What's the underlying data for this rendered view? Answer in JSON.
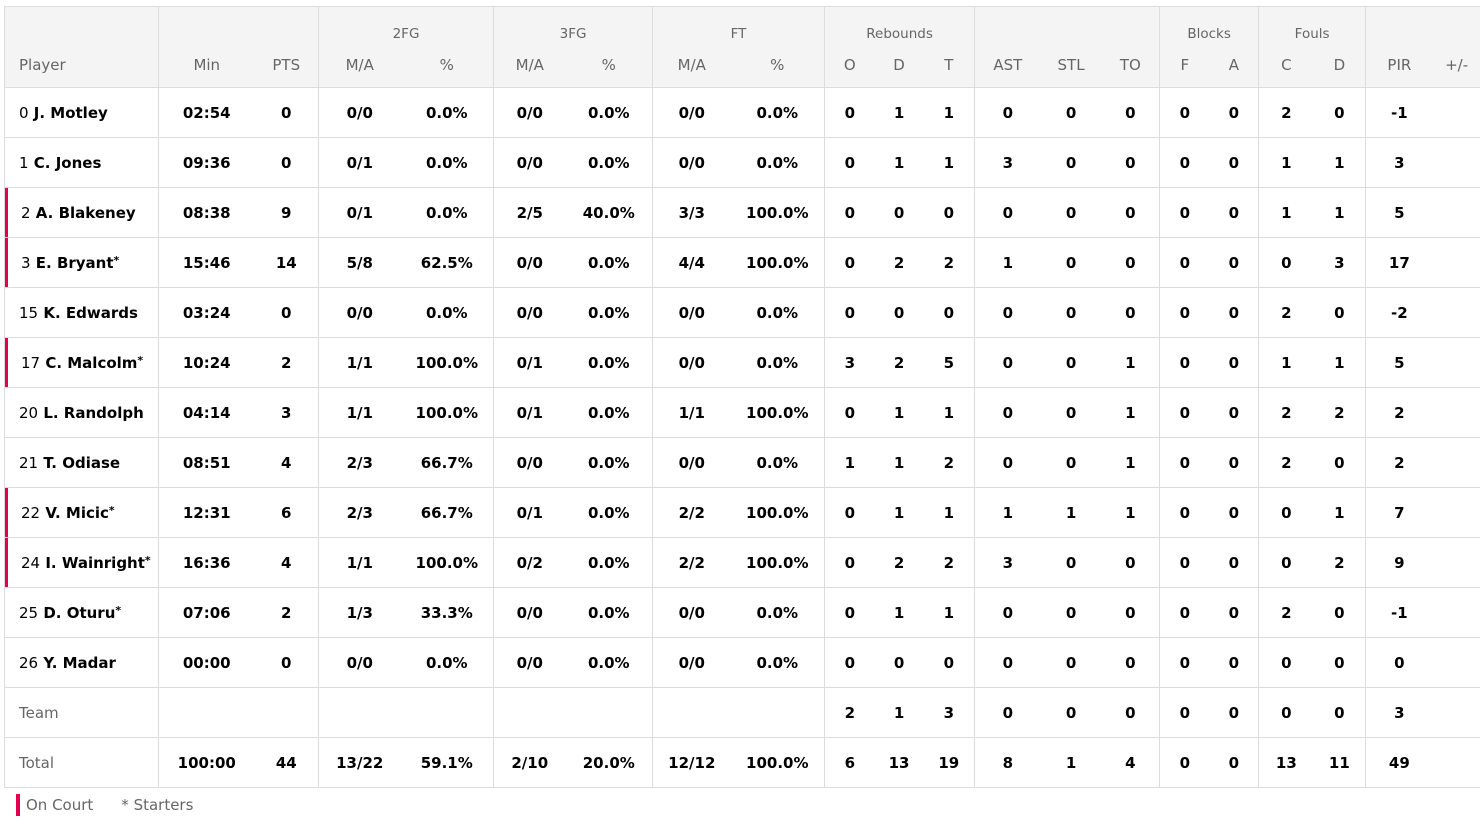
{
  "colors": {
    "on_court": "#e0004d"
  },
  "header": {
    "groups": [
      "",
      "",
      "",
      "2FG",
      "3FG",
      "FT",
      "Rebounds",
      "",
      "Blocks",
      "Fouls",
      ""
    ],
    "columns": [
      "Player",
      "Min",
      "PTS",
      "M/A",
      "%",
      "M/A",
      "%",
      "M/A",
      "%",
      "O",
      "D",
      "T",
      "AST",
      "STL",
      "TO",
      "F",
      "A",
      "C",
      "D",
      "PIR",
      "+/-"
    ]
  },
  "rows": [
    {
      "num": "0",
      "name": "J. Motley",
      "starter": false,
      "on_court": false,
      "stats": [
        "02:54",
        "0",
        "0/0",
        "0.0%",
        "0/0",
        "0.0%",
        "0/0",
        "0.0%",
        "0",
        "1",
        "1",
        "0",
        "0",
        "0",
        "0",
        "0",
        "2",
        "0",
        "-1",
        ""
      ]
    },
    {
      "num": "1",
      "name": "C. Jones",
      "starter": false,
      "on_court": false,
      "stats": [
        "09:36",
        "0",
        "0/1",
        "0.0%",
        "0/0",
        "0.0%",
        "0/0",
        "0.0%",
        "0",
        "1",
        "1",
        "3",
        "0",
        "0",
        "0",
        "0",
        "1",
        "1",
        "3",
        ""
      ]
    },
    {
      "num": "2",
      "name": "A. Blakeney",
      "starter": false,
      "on_court": true,
      "stats": [
        "08:38",
        "9",
        "0/1",
        "0.0%",
        "2/5",
        "40.0%",
        "3/3",
        "100.0%",
        "0",
        "0",
        "0",
        "0",
        "0",
        "0",
        "0",
        "0",
        "1",
        "1",
        "5",
        ""
      ]
    },
    {
      "num": "3",
      "name": "E. Bryant",
      "starter": true,
      "on_court": true,
      "stats": [
        "15:46",
        "14",
        "5/8",
        "62.5%",
        "0/0",
        "0.0%",
        "4/4",
        "100.0%",
        "0",
        "2",
        "2",
        "1",
        "0",
        "0",
        "0",
        "0",
        "0",
        "3",
        "17",
        ""
      ]
    },
    {
      "num": "15",
      "name": "K. Edwards",
      "starter": false,
      "on_court": false,
      "stats": [
        "03:24",
        "0",
        "0/0",
        "0.0%",
        "0/0",
        "0.0%",
        "0/0",
        "0.0%",
        "0",
        "0",
        "0",
        "0",
        "0",
        "0",
        "0",
        "0",
        "2",
        "0",
        "-2",
        ""
      ]
    },
    {
      "num": "17",
      "name": "C. Malcolm",
      "starter": true,
      "on_court": true,
      "stats": [
        "10:24",
        "2",
        "1/1",
        "100.0%",
        "0/1",
        "0.0%",
        "0/0",
        "0.0%",
        "3",
        "2",
        "5",
        "0",
        "0",
        "1",
        "0",
        "0",
        "1",
        "1",
        "5",
        ""
      ]
    },
    {
      "num": "20",
      "name": "L. Randolph",
      "starter": false,
      "on_court": false,
      "stats": [
        "04:14",
        "3",
        "1/1",
        "100.0%",
        "0/1",
        "0.0%",
        "1/1",
        "100.0%",
        "0",
        "1",
        "1",
        "0",
        "0",
        "1",
        "0",
        "0",
        "2",
        "2",
        "2",
        ""
      ]
    },
    {
      "num": "21",
      "name": "T. Odiase",
      "starter": false,
      "on_court": false,
      "stats": [
        "08:51",
        "4",
        "2/3",
        "66.7%",
        "0/0",
        "0.0%",
        "0/0",
        "0.0%",
        "1",
        "1",
        "2",
        "0",
        "0",
        "1",
        "0",
        "0",
        "2",
        "0",
        "2",
        ""
      ]
    },
    {
      "num": "22",
      "name": "V. Micic",
      "starter": true,
      "on_court": true,
      "stats": [
        "12:31",
        "6",
        "2/3",
        "66.7%",
        "0/1",
        "0.0%",
        "2/2",
        "100.0%",
        "0",
        "1",
        "1",
        "1",
        "1",
        "1",
        "0",
        "0",
        "0",
        "1",
        "7",
        ""
      ]
    },
    {
      "num": "24",
      "name": "I. Wainright",
      "starter": true,
      "on_court": true,
      "stats": [
        "16:36",
        "4",
        "1/1",
        "100.0%",
        "0/2",
        "0.0%",
        "2/2",
        "100.0%",
        "0",
        "2",
        "2",
        "3",
        "0",
        "0",
        "0",
        "0",
        "0",
        "2",
        "9",
        ""
      ]
    },
    {
      "num": "25",
      "name": "D. Oturu",
      "starter": true,
      "on_court": false,
      "stats": [
        "07:06",
        "2",
        "1/3",
        "33.3%",
        "0/0",
        "0.0%",
        "0/0",
        "0.0%",
        "0",
        "1",
        "1",
        "0",
        "0",
        "0",
        "0",
        "0",
        "2",
        "0",
        "-1",
        ""
      ]
    },
    {
      "num": "26",
      "name": "Y. Madar",
      "starter": false,
      "on_court": false,
      "stats": [
        "00:00",
        "0",
        "0/0",
        "0.0%",
        "0/0",
        "0.0%",
        "0/0",
        "0.0%",
        "0",
        "0",
        "0",
        "0",
        "0",
        "0",
        "0",
        "0",
        "0",
        "0",
        "0",
        ""
      ]
    }
  ],
  "team": {
    "label": "Team",
    "stats": [
      "",
      "",
      "",
      "",
      "",
      "",
      "",
      "",
      "2",
      "1",
      "3",
      "0",
      "0",
      "0",
      "0",
      "0",
      "0",
      "0",
      "3",
      ""
    ]
  },
  "total": {
    "label": "Total",
    "stats": [
      "100:00",
      "44",
      "13/22",
      "59.1%",
      "2/10",
      "20.0%",
      "12/12",
      "100.0%",
      "6",
      "13",
      "19",
      "8",
      "1",
      "4",
      "0",
      "0",
      "13",
      "11",
      "49",
      ""
    ]
  },
  "legend": {
    "on_court": "On Court",
    "starters": "* Starters",
    "star": "*"
  }
}
